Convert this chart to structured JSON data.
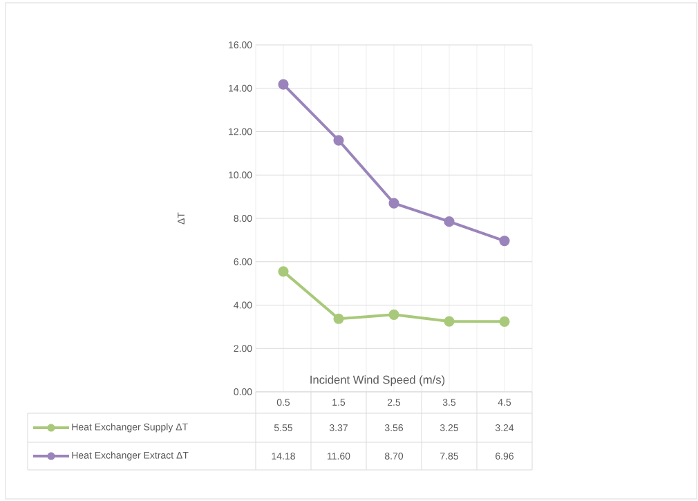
{
  "chart_data": {
    "type": "line",
    "xlabel": "Incident Wind Speed (m/s)",
    "ylabel": "ΔT",
    "categories": [
      "0.5",
      "1.5",
      "2.5",
      "3.5",
      "4.5"
    ],
    "series": [
      {
        "name": "Heat Exchanger Supply ΔT",
        "color": "#a9c97a",
        "values": [
          5.55,
          3.37,
          3.56,
          3.25,
          3.24
        ],
        "value_labels": [
          "5.55",
          "3.37",
          "3.56",
          "3.25",
          "3.24"
        ]
      },
      {
        "name": "Heat Exchanger Extract ΔT",
        "color": "#9a84bb",
        "values": [
          14.18,
          11.6,
          8.7,
          7.85,
          6.96
        ],
        "value_labels": [
          "14.18",
          "11.60",
          "8.70",
          "7.85",
          "6.96"
        ]
      }
    ],
    "ylim": [
      0,
      16
    ],
    "yticks": [
      {
        "value": 0,
        "label": "0.00"
      },
      {
        "value": 2,
        "label": "2.00"
      },
      {
        "value": 4,
        "label": "4.00"
      },
      {
        "value": 6,
        "label": "6.00"
      },
      {
        "value": 8,
        "label": "8.00"
      },
      {
        "value": 10,
        "label": "10.00"
      },
      {
        "value": 12,
        "label": "12.00"
      },
      {
        "value": 14,
        "label": "14.00"
      },
      {
        "value": 16,
        "label": "16.00"
      }
    ],
    "grid": true,
    "legend": "bottom",
    "marker": "circle",
    "line_style": "solid"
  }
}
